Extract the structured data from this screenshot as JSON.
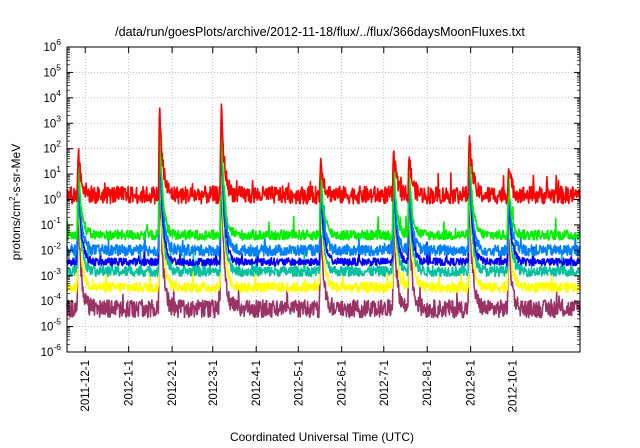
{
  "chart_data": {
    "type": "line",
    "title": "/data/run/goesPlots/archive/2012-11-18/flux/../flux/366daysMoonFluxes.txt",
    "xlabel": "Coordinated Universal Time (UTC)",
    "ylabel": "protons/cm²-s-sr-MeV",
    "yscale": "log",
    "ylim": [
      1e-06,
      1000000.0
    ],
    "xlim": [
      "2011-11-18",
      "2012-11-18"
    ],
    "grid": true,
    "x_ticks": [
      "2011-12-1",
      "2012-1-1",
      "2012-2-1",
      "2012-3-1",
      "2012-4-1",
      "2012-5-1",
      "2012-6-1",
      "2012-7-1",
      "2012-8-1",
      "2012-9-1",
      "2012-10-1"
    ],
    "y_ticks": [
      "10^-6",
      "10^-5",
      "10^-4",
      "10^-3",
      "10^-2",
      "10^-1",
      "10^0",
      "10^1",
      "10^2",
      "10^3",
      "10^4",
      "10^5",
      "10^6"
    ],
    "events": [
      {
        "date": "2011-11-26",
        "peak": 100
      },
      {
        "date": "2012-01-23",
        "peak": 5000
      },
      {
        "date": "2012-03-07",
        "peak": 7000
      },
      {
        "date": "2012-05-17",
        "peak": 50
      },
      {
        "date": "2012-07-08",
        "peak": 80
      },
      {
        "date": "2012-07-19",
        "peak": 60
      },
      {
        "date": "2012-08-31",
        "peak": 500
      },
      {
        "date": "2012-09-28",
        "peak": 20
      }
    ],
    "series": [
      {
        "color": "#ff0000",
        "baseline": 1.5,
        "noise": 0.35,
        "spike_scale": 1.0
      },
      {
        "color": "#00ee00",
        "baseline": 0.04,
        "noise": 0.2,
        "spike_scale": 0.35
      },
      {
        "color": "#0080ff",
        "baseline": 0.01,
        "noise": 0.22,
        "spike_scale": 0.2
      },
      {
        "color": "#0000ff",
        "baseline": 0.0035,
        "noise": 0.15,
        "spike_scale": 0.1
      },
      {
        "color": "#00c0a0",
        "baseline": 0.0015,
        "noise": 0.2,
        "spike_scale": 0.05
      },
      {
        "color": "#ffff00",
        "baseline": 0.00035,
        "noise": 0.2,
        "spike_scale": 0.02
      },
      {
        "color": "#993366",
        "baseline": 5e-05,
        "noise": 0.35,
        "spike_scale": 0.004
      }
    ]
  }
}
